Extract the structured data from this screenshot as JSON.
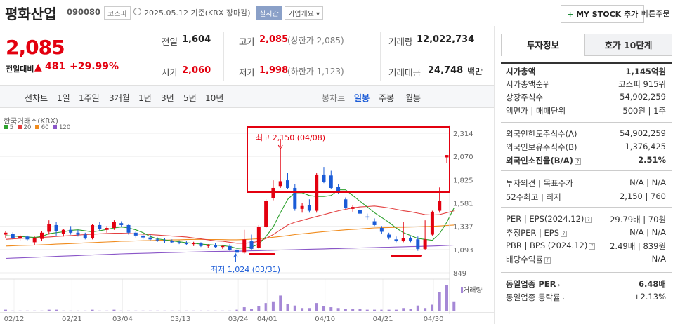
{
  "header": {
    "name": "평화산업",
    "code": "090080",
    "market": "코스피",
    "date_info": "2025.05.12 기준(KRX 장마감)",
    "realtime": "실시간",
    "overview": "기업개요",
    "overview_arrow": "▾",
    "mystock": "MY STOCK 추가",
    "quick_order": "빠른주문"
  },
  "quote": {
    "price": "2,085",
    "change_label": "전일대비",
    "change": "481",
    "rate": "+29.99%"
  },
  "summary": {
    "prev_label": "전일",
    "prev": "1,604",
    "high_label": "고가",
    "high": "2,085",
    "high_limit": "(상한가 2,085)",
    "volume_label": "거래량",
    "volume": "12,022,734",
    "open_label": "시가",
    "open": "2,060",
    "low_label": "저가",
    "low": "1,998",
    "low_limit": "(하한가 1,123)",
    "amount_label": "거래대금",
    "amount": "24,748",
    "amount_unit": "백만"
  },
  "periods": [
    "선차트",
    "1일",
    "1주일",
    "3개월",
    "1년",
    "3년",
    "5년",
    "10년"
  ],
  "candle_periods": [
    "봉차트",
    "일봉",
    "주봉",
    "월봉"
  ],
  "colors": {
    "up": "#e3000f",
    "down": "#1a5bd7",
    "ma5": "#2ea12e",
    "ma20": "#e34040",
    "ma60": "#f08c1e",
    "ma120": "#8a56c8",
    "accent": "#e3000f"
  },
  "chart_data": {
    "type": "candlestick",
    "source_label": "한국거래소(KRX)",
    "ma_legend": [
      "5",
      "20",
      "60",
      "120"
    ],
    "ylim": [
      849,
      2314
    ],
    "y_ticks": [
      "2,314",
      "2,070",
      "1,825",
      "1,581",
      "1,337",
      "1,093",
      "849"
    ],
    "x_ticks": [
      "02/12",
      "02/21",
      "03/04",
      "03/13",
      "03/24",
      "04/01",
      "04/10",
      "04/21",
      "04/30"
    ],
    "volume_label": "거래량",
    "annotation_high": "최고 2,150 (04/08)",
    "annotation_low": "최저 1,024 (03/31)",
    "candles": [
      {
        "o": 1250,
        "h": 1290,
        "l": 1210,
        "c": 1270
      },
      {
        "o": 1260,
        "h": 1275,
        "l": 1200,
        "c": 1215
      },
      {
        "o": 1215,
        "h": 1250,
        "l": 1180,
        "c": 1230
      },
      {
        "o": 1230,
        "h": 1240,
        "l": 1190,
        "c": 1200
      },
      {
        "o": 1170,
        "h": 1230,
        "l": 1140,
        "c": 1210
      },
      {
        "o": 1205,
        "h": 1290,
        "l": 1180,
        "c": 1270
      },
      {
        "o": 1280,
        "h": 1400,
        "l": 1250,
        "c": 1360
      },
      {
        "o": 1350,
        "h": 1380,
        "l": 1240,
        "c": 1290
      },
      {
        "o": 1260,
        "h": 1310,
        "l": 1230,
        "c": 1300
      },
      {
        "o": 1300,
        "h": 1340,
        "l": 1250,
        "c": 1270
      },
      {
        "o": 1270,
        "h": 1300,
        "l": 1230,
        "c": 1250
      },
      {
        "o": 1250,
        "h": 1270,
        "l": 1200,
        "c": 1215
      },
      {
        "o": 1215,
        "h": 1360,
        "l": 1200,
        "c": 1350
      },
      {
        "o": 1350,
        "h": 1380,
        "l": 1290,
        "c": 1310
      },
      {
        "o": 1300,
        "h": 1340,
        "l": 1270,
        "c": 1320
      },
      {
        "o": 1320,
        "h": 1400,
        "l": 1300,
        "c": 1380
      },
      {
        "o": 1370,
        "h": 1390,
        "l": 1330,
        "c": 1350
      },
      {
        "o": 1350,
        "h": 1360,
        "l": 1250,
        "c": 1270
      },
      {
        "o": 1270,
        "h": 1290,
        "l": 1220,
        "c": 1240
      },
      {
        "o": 1240,
        "h": 1260,
        "l": 1200,
        "c": 1220
      },
      {
        "o": 1220,
        "h": 1250,
        "l": 1190,
        "c": 1200
      },
      {
        "o": 1200,
        "h": 1220,
        "l": 1175,
        "c": 1190
      },
      {
        "o": 1190,
        "h": 1210,
        "l": 1165,
        "c": 1180
      },
      {
        "o": 1180,
        "h": 1200,
        "l": 1160,
        "c": 1170
      },
      {
        "o": 1170,
        "h": 1190,
        "l": 1150,
        "c": 1160
      },
      {
        "o": 1160,
        "h": 1180,
        "l": 1140,
        "c": 1150
      },
      {
        "o": 1150,
        "h": 1175,
        "l": 1130,
        "c": 1160
      },
      {
        "o": 1160,
        "h": 1170,
        "l": 1120,
        "c": 1130
      },
      {
        "o": 1130,
        "h": 1150,
        "l": 1110,
        "c": 1140
      },
      {
        "o": 1140,
        "h": 1160,
        "l": 1110,
        "c": 1120
      },
      {
        "o": 1120,
        "h": 1140,
        "l": 1100,
        "c": 1130
      },
      {
        "o": 1130,
        "h": 1150,
        "l": 1080,
        "c": 1090
      },
      {
        "o": 1090,
        "h": 1110,
        "l": 1024,
        "c": 1060
      },
      {
        "o": 1060,
        "h": 1300,
        "l": 1050,
        "c": 1200
      },
      {
        "o": 1180,
        "h": 1250,
        "l": 1090,
        "c": 1100
      },
      {
        "o": 1110,
        "h": 1350,
        "l": 1100,
        "c": 1330
      },
      {
        "o": 1330,
        "h": 1620,
        "l": 1320,
        "c": 1600
      },
      {
        "o": 1630,
        "h": 1820,
        "l": 1610,
        "c": 1740
      },
      {
        "o": 1760,
        "h": 2150,
        "l": 1740,
        "c": 1810
      },
      {
        "o": 1820,
        "h": 1900,
        "l": 1730,
        "c": 1740
      },
      {
        "o": 1740,
        "h": 1780,
        "l": 1500,
        "c": 1520
      },
      {
        "o": 1520,
        "h": 1580,
        "l": 1480,
        "c": 1550
      },
      {
        "o": 1560,
        "h": 1620,
        "l": 1480,
        "c": 1500
      },
      {
        "o": 1500,
        "h": 1900,
        "l": 1480,
        "c": 1880
      },
      {
        "o": 1880,
        "h": 1960,
        "l": 1790,
        "c": 1800
      },
      {
        "o": 1870,
        "h": 1920,
        "l": 1730,
        "c": 1740
      },
      {
        "o": 1750,
        "h": 1780,
        "l": 1680,
        "c": 1700
      },
      {
        "o": 1620,
        "h": 1640,
        "l": 1520,
        "c": 1530
      },
      {
        "o": 1520,
        "h": 1560,
        "l": 1490,
        "c": 1540
      },
      {
        "o": 1510,
        "h": 1560,
        "l": 1450,
        "c": 1470
      },
      {
        "o": 1440,
        "h": 1470,
        "l": 1410,
        "c": 1430
      },
      {
        "o": 1390,
        "h": 1420,
        "l": 1340,
        "c": 1350
      },
      {
        "o": 1320,
        "h": 1340,
        "l": 1260,
        "c": 1280
      },
      {
        "o": 1250,
        "h": 1270,
        "l": 1200,
        "c": 1220
      },
      {
        "o": 1200,
        "h": 1230,
        "l": 1170,
        "c": 1180
      },
      {
        "o": 1180,
        "h": 1380,
        "l": 1170,
        "c": 1210
      },
      {
        "o": 1210,
        "h": 1230,
        "l": 1170,
        "c": 1180
      },
      {
        "o": 1200,
        "h": 1230,
        "l": 1080,
        "c": 1100
      },
      {
        "o": 1100,
        "h": 1400,
        "l": 1090,
        "c": 1200
      },
      {
        "o": 1250,
        "h": 1500,
        "l": 1240,
        "c": 1490
      },
      {
        "o": 1500,
        "h": 1745,
        "l": 1480,
        "c": 1604
      },
      {
        "o": 2060,
        "h": 2085,
        "l": 1998,
        "c": 2085
      }
    ],
    "ma5": [
      1240,
      1235,
      1230,
      1225,
      1220,
      1230,
      1260,
      1270,
      1280,
      1295,
      1300,
      1290,
      1280,
      1290,
      1305,
      1320,
      1330,
      1320,
      1300,
      1270,
      1230,
      1205,
      1195,
      1185,
      1175,
      1165,
      1160,
      1150,
      1145,
      1140,
      1135,
      1125,
      1105,
      1110,
      1120,
      1150,
      1230,
      1330,
      1480,
      1620,
      1690,
      1690,
      1660,
      1650,
      1650,
      1660,
      1720,
      1720,
      1660,
      1600,
      1540,
      1480,
      1430,
      1380,
      1320,
      1270,
      1240,
      1210,
      1200,
      1190,
      1260,
      1380,
      1530
    ],
    "ma20": [
      1200,
      1205,
      1210,
      1215,
      1215,
      1220,
      1225,
      1230,
      1235,
      1240,
      1245,
      1250,
      1255,
      1258,
      1262,
      1265,
      1265,
      1262,
      1258,
      1255,
      1250,
      1245,
      1240,
      1235,
      1230,
      1225,
      1215,
      1205,
      1195,
      1185,
      1180,
      1170,
      1160,
      1160,
      1165,
      1180,
      1210,
      1250,
      1300,
      1350,
      1380,
      1400,
      1420,
      1440,
      1460,
      1480,
      1500,
      1515,
      1530,
      1540,
      1545,
      1550,
      1540,
      1530,
      1515,
      1500,
      1490,
      1475,
      1460,
      1455,
      1460,
      1480,
      1500
    ],
    "ma60": [
      1130,
      1133,
      1136,
      1138,
      1140,
      1143,
      1146,
      1150,
      1153,
      1156,
      1160,
      1163,
      1166,
      1170,
      1173,
      1176,
      1180,
      1182,
      1184,
      1186,
      1188,
      1190,
      1192,
      1194,
      1196,
      1198,
      1200,
      1200,
      1199,
      1198,
      1197,
      1196,
      1196,
      1198,
      1202,
      1207,
      1214,
      1222,
      1230,
      1240,
      1250,
      1258,
      1266,
      1274,
      1281,
      1288,
      1294,
      1300,
      1305,
      1310,
      1315,
      1320,
      1322,
      1324,
      1326,
      1328,
      1330,
      1332,
      1334,
      1337,
      1341,
      1346,
      1350
    ],
    "ma120": [
      1000,
      1003,
      1006,
      1009,
      1012,
      1015,
      1018,
      1021,
      1024,
      1027,
      1030,
      1033,
      1036,
      1039,
      1042,
      1045,
      1048,
      1050,
      1052,
      1054,
      1056,
      1058,
      1060,
      1062,
      1064,
      1066,
      1068,
      1070,
      1072,
      1073,
      1074,
      1075,
      1076,
      1078,
      1080,
      1082,
      1084,
      1086,
      1088,
      1090,
      1092,
      1094,
      1096,
      1098,
      1100,
      1102,
      1104,
      1106,
      1108,
      1110,
      1112,
      1114,
      1116,
      1118,
      1120,
      1122,
      1124,
      1126,
      1128,
      1130,
      1133,
      1136,
      1140
    ],
    "volumes": [
      2,
      1,
      1,
      1,
      1,
      1,
      2,
      2,
      1,
      1,
      1,
      1,
      2,
      1,
      1,
      2,
      1,
      1,
      1,
      1,
      1,
      1,
      1,
      1,
      1,
      1,
      1,
      1,
      1,
      1,
      1,
      1,
      2,
      5,
      3,
      6,
      10,
      12,
      19,
      9,
      7,
      4,
      4,
      10,
      6,
      5,
      4,
      3,
      3,
      3,
      2,
      2,
      2,
      2,
      2,
      4,
      3,
      7,
      4,
      8,
      23,
      32,
      12
    ]
  },
  "tabs": [
    "투자정보",
    "호가 10단계"
  ],
  "info": [
    {
      "k": "시가총액",
      "v": "1,145억원",
      "bold": true
    },
    {
      "k": "시가총액순위",
      "v": "코스피 915위"
    },
    {
      "k": "상장주식수",
      "v": "54,902,259"
    },
    {
      "k": "액면가 | 매매단위",
      "v": "500원 | 1주"
    },
    {
      "k": "외국인한도주식수(A)",
      "v": "54,902,259"
    },
    {
      "k": "외국인보유주식수(B)",
      "v": "1,376,425"
    },
    {
      "k": "외국인소진율(B/A)",
      "v": "2.51%",
      "bold": true
    },
    {
      "k": "투자의견 | 목표주가",
      "v": "N/A | N/A"
    },
    {
      "k": "52주최고 | 최저",
      "v": "2,150 | 760"
    },
    {
      "k": "PER | EPS(2024.12)",
      "v": "29.79배 | 70원"
    },
    {
      "k": "추정PER | EPS",
      "v": "N/A | N/A"
    },
    {
      "k": "PBR | BPS (2024.12)",
      "v": "2.49배 | 839원"
    },
    {
      "k": "배당수익률",
      "v": "N/A"
    },
    {
      "k": "동일업종 PER",
      "v": "6.48배",
      "bold": true
    },
    {
      "k": "동일업종 등락률",
      "v": "+2.13%",
      "red": true
    }
  ]
}
